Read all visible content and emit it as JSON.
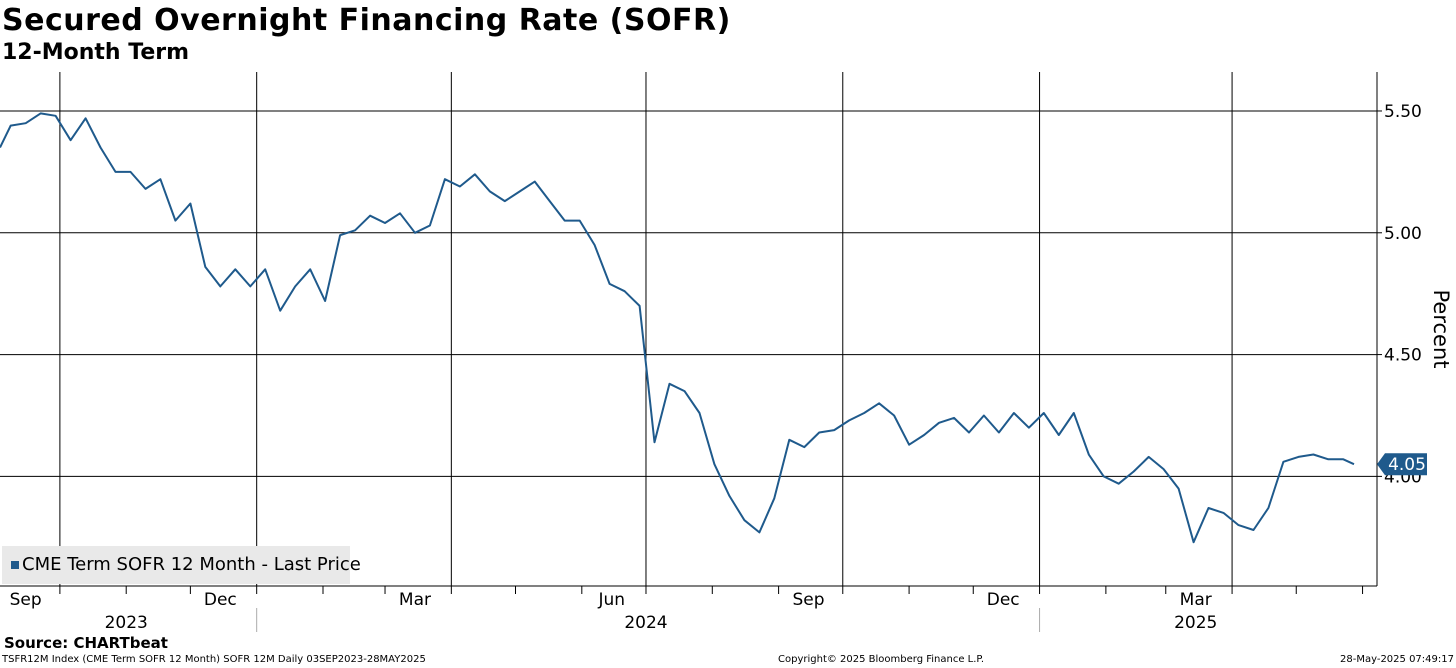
{
  "header": {
    "title": "Secured Overnight Financing Rate (SOFR)",
    "subtitle": "12-Month Term"
  },
  "legend": {
    "label": "CME Term SOFR 12 Month - Last Price"
  },
  "last_value_label": "4.05",
  "source": "Source: CHARTbeat",
  "footer": {
    "left": "TSFR12M Index (CME Term SOFR 12 Month) SOFR 12M  Daily 03SEP2023-28MAY2025",
    "middle": "Copyright© 2025 Bloomberg Finance L.P.",
    "right": "28-May-2025 07:49:17"
  },
  "colors": {
    "line": "#1f5a8c",
    "badge": "#1f5a8c",
    "grid": "#000000"
  },
  "chart_data": {
    "type": "line",
    "title": "Secured Overnight Financing Rate (SOFR)",
    "subtitle": "12-Month Term",
    "ylabel": "Percent",
    "ylim": [
      3.55,
      5.66
    ],
    "yticks": [
      "5.50",
      "5.00",
      "4.50",
      "4.00"
    ],
    "xlim": [
      "2023-09-03",
      "2025-05-28"
    ],
    "month_labels": [
      {
        "label": "Sep",
        "date": "2023-09-15"
      },
      {
        "label": "Dec",
        "date": "2023-12-15"
      },
      {
        "label": "Mar",
        "date": "2024-03-15"
      },
      {
        "label": "Jun",
        "date": "2024-06-15"
      },
      {
        "label": "Sep",
        "date": "2024-09-15"
      },
      {
        "label": "Dec",
        "date": "2024-12-15"
      },
      {
        "label": "Mar",
        "date": "2025-03-15"
      }
    ],
    "year_labels": [
      {
        "label": "2023",
        "date": "2023-11-01"
      },
      {
        "label": "2024",
        "date": "2024-07-01"
      },
      {
        "label": "2025",
        "date": "2025-03-15"
      }
    ],
    "grid": true,
    "legend_position": "bottom-left",
    "series": [
      {
        "name": "CME Term SOFR 12 Month - Last Price",
        "x": [
          "2023-09-03",
          "2023-09-08",
          "2023-09-15",
          "2023-09-22",
          "2023-09-29",
          "2023-10-06",
          "2023-10-13",
          "2023-10-20",
          "2023-10-27",
          "2023-11-03",
          "2023-11-10",
          "2023-11-17",
          "2023-11-24",
          "2023-12-01",
          "2023-12-08",
          "2023-12-15",
          "2023-12-22",
          "2023-12-29",
          "2024-01-05",
          "2024-01-12",
          "2024-01-19",
          "2024-01-26",
          "2024-02-02",
          "2024-02-09",
          "2024-02-16",
          "2024-02-23",
          "2024-03-01",
          "2024-03-08",
          "2024-03-15",
          "2024-03-22",
          "2024-03-29",
          "2024-04-05",
          "2024-04-12",
          "2024-04-19",
          "2024-04-26",
          "2024-05-03",
          "2024-05-10",
          "2024-05-17",
          "2024-05-24",
          "2024-05-31",
          "2024-06-07",
          "2024-06-14",
          "2024-06-21",
          "2024-06-28",
          "2024-07-05",
          "2024-07-12",
          "2024-07-19",
          "2024-07-26",
          "2024-08-02",
          "2024-08-09",
          "2024-08-16",
          "2024-08-23",
          "2024-08-30",
          "2024-09-06",
          "2024-09-13",
          "2024-09-20",
          "2024-09-27",
          "2024-10-04",
          "2024-10-11",
          "2024-10-18",
          "2024-10-25",
          "2024-11-01",
          "2024-11-08",
          "2024-11-15",
          "2024-11-22",
          "2024-11-29",
          "2024-12-06",
          "2024-12-13",
          "2024-12-20",
          "2024-12-27",
          "2025-01-03",
          "2025-01-10",
          "2025-01-17",
          "2025-01-24",
          "2025-01-31",
          "2025-02-07",
          "2025-02-14",
          "2025-02-21",
          "2025-02-28",
          "2025-03-07",
          "2025-03-14",
          "2025-03-21",
          "2025-03-28",
          "2025-04-04",
          "2025-04-11",
          "2025-04-18",
          "2025-04-25",
          "2025-05-02",
          "2025-05-09",
          "2025-05-16",
          "2025-05-23",
          "2025-05-28"
        ],
        "y": [
          5.35,
          5.44,
          5.45,
          5.49,
          5.48,
          5.38,
          5.47,
          5.35,
          5.25,
          5.25,
          5.18,
          5.22,
          5.05,
          5.12,
          4.86,
          4.78,
          4.85,
          4.78,
          4.85,
          4.68,
          4.78,
          4.85,
          4.72,
          4.99,
          5.01,
          5.07,
          5.04,
          5.08,
          5.0,
          5.03,
          5.22,
          5.19,
          5.24,
          5.17,
          5.13,
          5.17,
          5.21,
          5.13,
          5.05,
          5.05,
          4.95,
          4.79,
          4.76,
          4.7,
          4.14,
          4.38,
          4.35,
          4.26,
          4.05,
          3.92,
          3.82,
          3.77,
          3.91,
          4.15,
          4.12,
          4.18,
          4.19,
          4.23,
          4.26,
          4.3,
          4.25,
          4.13,
          4.17,
          4.22,
          4.24,
          4.18,
          4.25,
          4.18,
          4.26,
          4.2,
          4.26,
          4.17,
          4.26,
          4.09,
          4.0,
          3.97,
          4.02,
          4.08,
          4.03,
          3.95,
          3.73,
          3.87,
          3.85,
          3.8,
          3.78,
          3.87,
          4.06,
          4.08,
          4.09,
          4.07,
          4.07,
          4.05
        ]
      }
    ]
  }
}
